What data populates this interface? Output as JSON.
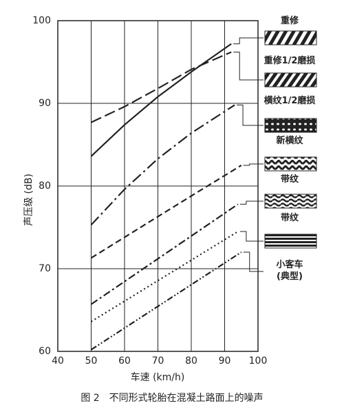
{
  "chart_data": {
    "type": "line",
    "caption": "图 2　不同形式轮胎在混凝土路面上的噪声",
    "xlabel": "车速 (km/h)",
    "ylabel": "声压级 (dB)",
    "xlim": [
      40,
      100
    ],
    "xticks": [
      40,
      50,
      60,
      70,
      80,
      90,
      100
    ],
    "ylim": [
      60,
      100
    ],
    "yticks": [
      60,
      70,
      80,
      90,
      100
    ],
    "grid": true,
    "series": [
      {
        "name": "重修",
        "color": "#222",
        "style": "solid",
        "x": [
          50,
          60,
          70,
          80,
          92
        ],
        "values": [
          83.6,
          87.4,
          90.8,
          93.8,
          97.2
        ]
      },
      {
        "name": "重修1/2磨损",
        "color": "#222",
        "style": "long-dash",
        "x": [
          50,
          60,
          70,
          80,
          92
        ],
        "values": [
          87.7,
          89.6,
          91.8,
          94.1,
          96.2
        ]
      },
      {
        "name": "横纹1/2磨损",
        "color": "#222",
        "style": "long-dash-dot",
        "x": [
          50,
          60,
          70,
          80,
          93
        ],
        "values": [
          75.3,
          79.6,
          83.3,
          86.4,
          89.8
        ]
      },
      {
        "name": "新横纹",
        "color": "#222",
        "style": "dash",
        "x": [
          50,
          60,
          70,
          80,
          95
        ],
        "values": [
          71.3,
          73.8,
          76.3,
          78.8,
          82.5
        ]
      },
      {
        "name": "带纹",
        "color": "#222",
        "style": "dash-dot",
        "x": [
          50,
          94
        ],
        "values": [
          65.7,
          77.8
        ]
      },
      {
        "name": "带纹",
        "color": "#222",
        "style": "dotted",
        "x": [
          50,
          94
        ],
        "values": [
          63.6,
          74.5
        ]
      },
      {
        "name": "小客车\n(典型)",
        "color": "#222",
        "style": "dash-dot-dot",
        "x": [
          50,
          95
        ],
        "values": [
          60.2,
          72.0
        ]
      }
    ]
  }
}
